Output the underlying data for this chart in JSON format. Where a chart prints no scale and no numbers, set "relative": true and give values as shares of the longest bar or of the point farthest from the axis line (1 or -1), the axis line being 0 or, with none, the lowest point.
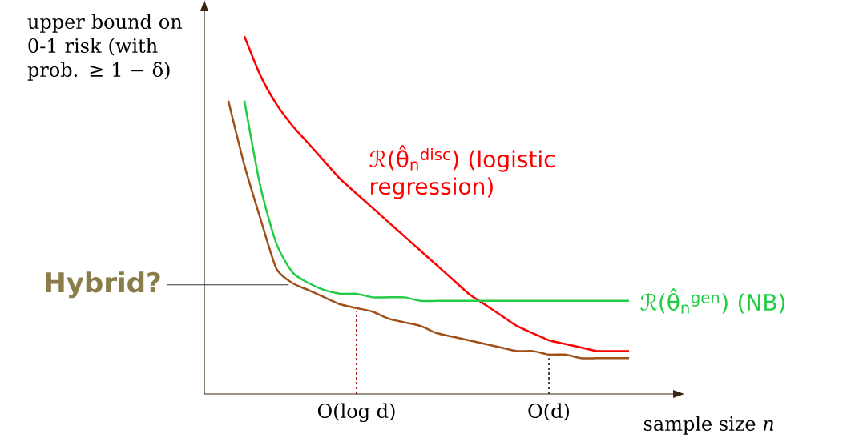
{
  "chart_data": {
    "type": "line",
    "relative": true,
    "xlabel": "sample size *n*",
    "ylabel": "upper bound on 0-1 risk (with prob. ≥ 1 − δ)",
    "categories": [
      null,
      null,
      null,
      null,
      null,
      null,
      null,
      null,
      "O(log d)",
      null,
      null,
      null,
      null,
      null,
      null,
      null,
      null,
      null,
      null,
      null,
      "O(d)",
      null,
      null,
      null,
      null,
      null
    ],
    "series": [
      {
        "name": "ℛ(θ̂$_{n}$$^{disc}$) (logistic regression)",
        "color": "#ff0000",
        "values": [
          null,
          1.0,
          0.89,
          0.81,
          0.75,
          0.7,
          0.65,
          0.6,
          0.56,
          0.52,
          0.48,
          0.44,
          0.4,
          0.36,
          0.32,
          0.28,
          0.25,
          0.22,
          0.19,
          0.17,
          0.15,
          0.14,
          0.13,
          0.12,
          0.12,
          0.12
        ]
      },
      {
        "name": "ℛ(θ̂$_{n}$$^{gen}$) (NB)",
        "color": "#22cc44",
        "values": [
          null,
          0.82,
          0.58,
          0.42,
          0.34,
          0.31,
          0.29,
          0.28,
          0.28,
          0.27,
          0.27,
          0.27,
          0.26,
          0.26,
          0.26,
          0.26,
          0.26,
          0.26,
          0.26,
          0.26,
          0.26,
          0.26,
          0.26,
          0.26,
          0.26,
          0.26
        ]
      },
      {
        "color": "#a0501a",
        "values": [
          0.82,
          0.64,
          0.49,
          0.35,
          0.31,
          0.29,
          0.27,
          0.25,
          0.24,
          0.23,
          0.21,
          0.2,
          0.19,
          0.17,
          0.16,
          0.15,
          0.14,
          0.13,
          0.12,
          0.12,
          0.11,
          0.11,
          0.1,
          0.1,
          0.1,
          0.1
        ]
      }
    ],
    "annotations": [
      "Hybrid?"
    ],
    "legend": false,
    "marker": "none",
    "line_style": "solid"
  }
}
